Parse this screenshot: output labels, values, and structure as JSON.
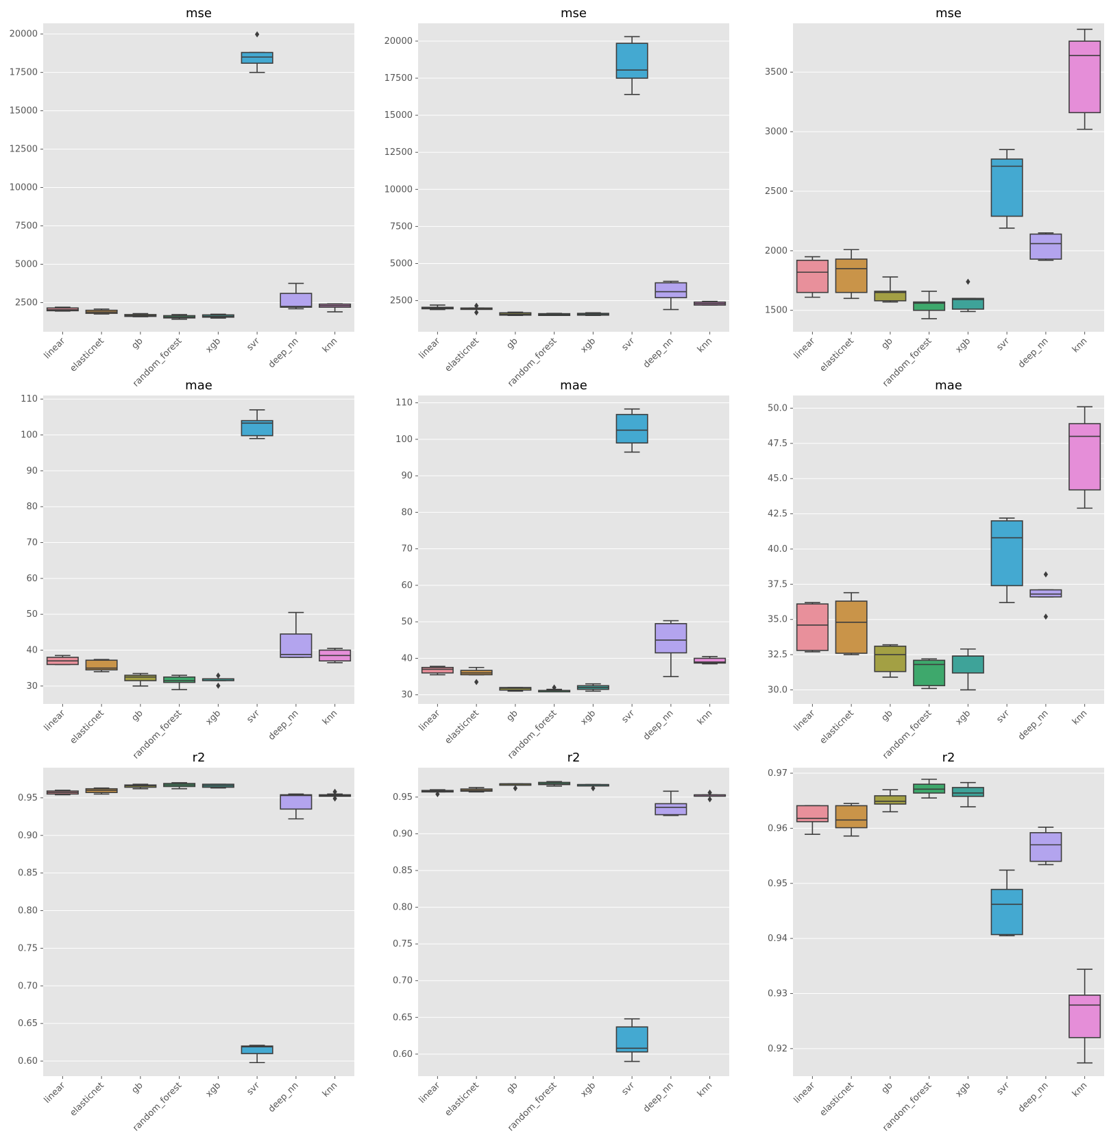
{
  "colors": {
    "panel_bg": "#e5e5e5",
    "grid": "#ffffff",
    "box_line": "#3d3d3d",
    "tick_text": "#555555",
    "title_text": "#000000",
    "models": {
      "linear": "#e8909b",
      "elasticnet": "#c99449",
      "gb": "#a3a044",
      "random_forest": "#3ea86c",
      "xgb": "#3ea399",
      "svr": "#44a9d1",
      "deep_nn": "#b3a4ee",
      "knn": "#e58ed8"
    }
  },
  "chart_data": [
    {
      "type": "box",
      "title": "mse",
      "categories": [
        "linear",
        "elasticnet",
        "gb",
        "random_forest",
        "xgb",
        "svr",
        "deep_nn",
        "knn"
      ],
      "yticks": [
        2500,
        5000,
        7500,
        10000,
        12500,
        15000,
        17500,
        20000
      ],
      "ytick_labels": [
        "2500",
        "5000",
        "7500",
        "10000",
        "12500",
        "15000",
        "17500",
        "20000"
      ],
      "ylim": [
        600,
        20700
      ],
      "boxes": [
        {
          "min": 1950,
          "q1": 1970,
          "med": 2030,
          "q3": 2150,
          "max": 2200,
          "outliers": []
        },
        {
          "min": 1760,
          "q1": 1800,
          "med": 1880,
          "q3": 2000,
          "max": 2080,
          "outliers": []
        },
        {
          "min": 1580,
          "q1": 1600,
          "med": 1650,
          "q3": 1720,
          "max": 1780,
          "outliers": []
        },
        {
          "min": 1420,
          "q1": 1500,
          "med": 1560,
          "q3": 1650,
          "max": 1720,
          "outliers": []
        },
        {
          "min": 1490,
          "q1": 1550,
          "med": 1600,
          "q3": 1700,
          "max": 1740,
          "outliers": []
        },
        {
          "min": 17500,
          "q1": 18100,
          "med": 18500,
          "q3": 18800,
          "max": 18800,
          "outliers": [
            19980
          ]
        },
        {
          "min": 2100,
          "q1": 2200,
          "med": 2250,
          "q3": 3100,
          "max": 3750,
          "outliers": []
        },
        {
          "min": 1900,
          "q1": 2200,
          "med": 2300,
          "q3": 2400,
          "max": 2420,
          "outliers": []
        }
      ]
    },
    {
      "type": "box",
      "title": "mse",
      "categories": [
        "linear",
        "elasticnet",
        "gb",
        "random_forest",
        "xgb",
        "svr",
        "deep_nn",
        "knn"
      ],
      "yticks": [
        2500,
        5000,
        7500,
        10000,
        12500,
        15000,
        17500,
        20000
      ],
      "ytick_labels": [
        "2500",
        "5000",
        "7500",
        "10000",
        "12500",
        "15000",
        "17500",
        "20000"
      ],
      "ylim": [
        400,
        21200
      ],
      "boxes": [
        {
          "min": 1900,
          "q1": 1950,
          "med": 2000,
          "q3": 2050,
          "max": 2200,
          "outliers": []
        },
        {
          "min": 1950,
          "q1": 1950,
          "med": 1980,
          "q3": 2000,
          "max": 2000,
          "outliers": [
            1700,
            2150
          ]
        },
        {
          "min": 1500,
          "q1": 1520,
          "med": 1580,
          "q3": 1680,
          "max": 1720,
          "outliers": []
        },
        {
          "min": 1500,
          "q1": 1500,
          "med": 1550,
          "q3": 1620,
          "max": 1640,
          "outliers": []
        },
        {
          "min": 1500,
          "q1": 1520,
          "med": 1560,
          "q3": 1640,
          "max": 1680,
          "outliers": []
        },
        {
          "min": 16400,
          "q1": 17500,
          "med": 18050,
          "q3": 19850,
          "max": 20300,
          "outliers": []
        },
        {
          "min": 1900,
          "q1": 2700,
          "med": 3100,
          "q3": 3700,
          "max": 3800,
          "outliers": []
        },
        {
          "min": 2200,
          "q1": 2200,
          "med": 2300,
          "q3": 2400,
          "max": 2450,
          "outliers": []
        }
      ]
    },
    {
      "type": "box",
      "title": "mse",
      "categories": [
        "linear",
        "elasticnet",
        "gb",
        "random_forest",
        "xgb",
        "svr",
        "deep_nn",
        "knn"
      ],
      "yticks": [
        1500,
        2000,
        2500,
        3000,
        3500
      ],
      "ytick_labels": [
        "1500",
        "2000",
        "2500",
        "3000",
        "3500"
      ],
      "ylim": [
        1320,
        3910
      ],
      "boxes": [
        {
          "min": 1610,
          "q1": 1650,
          "med": 1820,
          "q3": 1920,
          "max": 1950,
          "outliers": []
        },
        {
          "min": 1600,
          "q1": 1650,
          "med": 1850,
          "q3": 1930,
          "max": 2010,
          "outliers": []
        },
        {
          "min": 1570,
          "q1": 1580,
          "med": 1650,
          "q3": 1660,
          "max": 1780,
          "outliers": []
        },
        {
          "min": 1430,
          "q1": 1500,
          "med": 1560,
          "q3": 1570,
          "max": 1660,
          "outliers": []
        },
        {
          "min": 1490,
          "q1": 1510,
          "med": 1590,
          "q3": 1600,
          "max": 1600,
          "outliers": [
            1740
          ]
        },
        {
          "min": 2190,
          "q1": 2290,
          "med": 2710,
          "q3": 2770,
          "max": 2850,
          "outliers": []
        },
        {
          "min": 1920,
          "q1": 1930,
          "med": 2060,
          "q3": 2140,
          "max": 2150,
          "outliers": []
        },
        {
          "min": 3020,
          "q1": 3160,
          "med": 3640,
          "q3": 3760,
          "max": 3860,
          "outliers": []
        }
      ]
    },
    {
      "type": "box",
      "title": "mae",
      "categories": [
        "linear",
        "elasticnet",
        "gb",
        "random_forest",
        "xgb",
        "svr",
        "deep_nn",
        "knn"
      ],
      "yticks": [
        30,
        40,
        50,
        60,
        70,
        80,
        90,
        100,
        110
      ],
      "ytick_labels": [
        "30",
        "40",
        "50",
        "60",
        "70",
        "80",
        "90",
        "100",
        "110"
      ],
      "ylim": [
        25,
        111
      ],
      "boxes": [
        {
          "min": 36,
          "q1": 36,
          "med": 37,
          "q3": 38,
          "max": 38.5,
          "outliers": []
        },
        {
          "min": 34,
          "q1": 34.5,
          "med": 35,
          "q3": 37.2,
          "max": 37.4,
          "outliers": []
        },
        {
          "min": 30,
          "q1": 31.5,
          "med": 32.5,
          "q3": 33,
          "max": 33.5,
          "outliers": []
        },
        {
          "min": 29,
          "q1": 31,
          "med": 31.5,
          "q3": 32.5,
          "max": 33,
          "outliers": []
        },
        {
          "min": 31.5,
          "q1": 31.5,
          "med": 32,
          "q3": 32,
          "max": 32,
          "outliers": [
            30.1,
            32.9
          ]
        },
        {
          "min": 99,
          "q1": 99.8,
          "med": 103.3,
          "q3": 104,
          "max": 107,
          "outliers": []
        },
        {
          "min": 38,
          "q1": 38,
          "med": 38.8,
          "q3": 44.5,
          "max": 50.5,
          "outliers": []
        },
        {
          "min": 36.5,
          "q1": 37,
          "med": 38.5,
          "q3": 40,
          "max": 40.5,
          "outliers": []
        }
      ]
    },
    {
      "type": "box",
      "title": "mae",
      "categories": [
        "linear",
        "elasticnet",
        "gb",
        "random_forest",
        "xgb",
        "svr",
        "deep_nn",
        "knn"
      ],
      "yticks": [
        30,
        40,
        50,
        60,
        70,
        80,
        90,
        100,
        110
      ],
      "ytick_labels": [
        "30",
        "40",
        "50",
        "60",
        "70",
        "80",
        "90",
        "100",
        "110"
      ],
      "ylim": [
        27.5,
        112
      ],
      "boxes": [
        {
          "min": 35.5,
          "q1": 36,
          "med": 37,
          "q3": 37.5,
          "max": 37.8,
          "outliers": []
        },
        {
          "min": 35.5,
          "q1": 35.5,
          "med": 36,
          "q3": 36.7,
          "max": 37.5,
          "outliers": [
            33.5
          ]
        },
        {
          "min": 31,
          "q1": 31.3,
          "med": 31.8,
          "q3": 32,
          "max": 32,
          "outliers": []
        },
        {
          "min": 31,
          "q1": 31,
          "med": 31.2,
          "q3": 31.2,
          "max": 31.5,
          "outliers": [
            32
          ]
        },
        {
          "min": 31,
          "q1": 31.5,
          "med": 32,
          "q3": 32.5,
          "max": 33,
          "outliers": []
        },
        {
          "min": 96.5,
          "q1": 99,
          "med": 102.5,
          "q3": 106.8,
          "max": 108.3,
          "outliers": []
        },
        {
          "min": 35,
          "q1": 41.5,
          "med": 45,
          "q3": 49.5,
          "max": 50.3,
          "outliers": []
        },
        {
          "min": 38.5,
          "q1": 38.7,
          "med": 39,
          "q3": 40,
          "max": 40.5,
          "outliers": []
        }
      ]
    },
    {
      "type": "box",
      "title": "mae",
      "categories": [
        "linear",
        "elasticnet",
        "gb",
        "random_forest",
        "xgb",
        "svr",
        "deep_nn",
        "knn"
      ],
      "yticks": [
        30.0,
        32.5,
        35.0,
        37.5,
        40.0,
        42.5,
        45.0,
        47.5,
        50.0
      ],
      "ytick_labels": [
        "30.0",
        "32.5",
        "35.0",
        "37.5",
        "40.0",
        "42.5",
        "45.0",
        "47.5",
        "50.0"
      ],
      "ylim": [
        29,
        50.9
      ],
      "boxes": [
        {
          "min": 32.7,
          "q1": 32.8,
          "med": 34.6,
          "q3": 36.1,
          "max": 36.2,
          "outliers": []
        },
        {
          "min": 32.5,
          "q1": 32.6,
          "med": 34.8,
          "q3": 36.3,
          "max": 36.9,
          "outliers": []
        },
        {
          "min": 30.9,
          "q1": 31.3,
          "med": 32.5,
          "q3": 33.1,
          "max": 33.2,
          "outliers": []
        },
        {
          "min": 30.1,
          "q1": 30.3,
          "med": 31.8,
          "q3": 32.1,
          "max": 32.2,
          "outliers": []
        },
        {
          "min": 30.0,
          "q1": 31.2,
          "med": 32.4,
          "q3": 32.4,
          "max": 32.9,
          "outliers": []
        },
        {
          "min": 36.2,
          "q1": 37.4,
          "med": 40.8,
          "q3": 42.0,
          "max": 42.2,
          "outliers": []
        },
        {
          "min": 36.6,
          "q1": 36.6,
          "med": 36.8,
          "q3": 37.1,
          "max": 37.1,
          "outliers": [
            35.2,
            38.2
          ]
        },
        {
          "min": 42.9,
          "q1": 44.2,
          "med": 48.0,
          "q3": 48.9,
          "max": 50.1,
          "outliers": []
        }
      ]
    },
    {
      "type": "box",
      "title": "r2",
      "categories": [
        "linear",
        "elasticnet",
        "gb",
        "random_forest",
        "xgb",
        "svr",
        "deep_nn",
        "knn"
      ],
      "yticks": [
        0.6,
        0.65,
        0.7,
        0.75,
        0.8,
        0.85,
        0.9,
        0.95
      ],
      "ytick_labels": [
        "0.60",
        "0.65",
        "0.70",
        "0.75",
        "0.80",
        "0.85",
        "0.90",
        "0.95"
      ],
      "ylim": [
        0.58,
        0.99
      ],
      "boxes": [
        {
          "min": 0.954,
          "q1": 0.955,
          "med": 0.957,
          "q3": 0.959,
          "max": 0.96,
          "outliers": []
        },
        {
          "min": 0.955,
          "q1": 0.957,
          "med": 0.96,
          "q3": 0.962,
          "max": 0.963,
          "outliers": []
        },
        {
          "min": 0.962,
          "q1": 0.964,
          "med": 0.966,
          "q3": 0.967,
          "max": 0.968,
          "outliers": []
        },
        {
          "min": 0.962,
          "q1": 0.965,
          "med": 0.967,
          "q3": 0.969,
          "max": 0.97,
          "outliers": []
        },
        {
          "min": 0.963,
          "q1": 0.964,
          "med": 0.966,
          "q3": 0.968,
          "max": 0.968,
          "outliers": []
        },
        {
          "min": 0.598,
          "q1": 0.61,
          "med": 0.619,
          "q3": 0.62,
          "max": 0.621,
          "outliers": []
        },
        {
          "min": 0.922,
          "q1": 0.935,
          "med": 0.953,
          "q3": 0.954,
          "max": 0.955,
          "outliers": []
        },
        {
          "min": 0.952,
          "q1": 0.952,
          "med": 0.953,
          "q3": 0.954,
          "max": 0.955,
          "outliers": [
            0.949,
            0.958
          ]
        }
      ]
    },
    {
      "type": "box",
      "title": "r2",
      "categories": [
        "linear",
        "elasticnet",
        "gb",
        "random_forest",
        "xgb",
        "svr",
        "deep_nn",
        "knn"
      ],
      "yticks": [
        0.6,
        0.65,
        0.7,
        0.75,
        0.8,
        0.85,
        0.9,
        0.95
      ],
      "ytick_labels": [
        "0.60",
        "0.65",
        "0.70",
        "0.75",
        "0.80",
        "0.85",
        "0.90",
        "0.95"
      ],
      "ylim": [
        0.57,
        0.99
      ],
      "boxes": [
        {
          "min": 0.957,
          "q1": 0.957,
          "med": 0.958,
          "q3": 0.959,
          "max": 0.96,
          "outliers": [
            0.954
          ]
        },
        {
          "min": 0.957,
          "q1": 0.958,
          "med": 0.959,
          "q3": 0.961,
          "max": 0.963,
          "outliers": []
        },
        {
          "min": 0.967,
          "q1": 0.967,
          "med": 0.968,
          "q3": 0.968,
          "max": 0.968,
          "outliers": [
            0.962
          ]
        },
        {
          "min": 0.965,
          "q1": 0.967,
          "med": 0.968,
          "q3": 0.97,
          "max": 0.971,
          "outliers": []
        },
        {
          "min": 0.967,
          "q1": 0.967,
          "med": 0.967,
          "q3": 0.967,
          "max": 0.967,
          "outliers": [
            0.962
          ]
        },
        {
          "min": 0.59,
          "q1": 0.603,
          "med": 0.608,
          "q3": 0.637,
          "max": 0.648,
          "outliers": []
        },
        {
          "min": 0.925,
          "q1": 0.926,
          "med": 0.936,
          "q3": 0.941,
          "max": 0.958,
          "outliers": []
        },
        {
          "min": 0.952,
          "q1": 0.952,
          "med": 0.953,
          "q3": 0.953,
          "max": 0.953,
          "outliers": [
            0.947,
            0.956
          ]
        }
      ]
    },
    {
      "type": "box",
      "title": "r2",
      "categories": [
        "linear",
        "elasticnet",
        "gb",
        "random_forest",
        "xgb",
        "svr",
        "deep_nn",
        "knn"
      ],
      "yticks": [
        0.92,
        0.93,
        0.94,
        0.95,
        0.96,
        0.97
      ],
      "ytick_labels": [
        "0.92",
        "0.93",
        "0.94",
        "0.95",
        "0.96",
        "0.97"
      ],
      "ylim": [
        0.915,
        0.971
      ],
      "boxes": [
        {
          "min": 0.9589,
          "q1": 0.9612,
          "med": 0.9618,
          "q3": 0.9641,
          "max": 0.9641,
          "outliers": []
        },
        {
          "min": 0.9586,
          "q1": 0.9601,
          "med": 0.9615,
          "q3": 0.9641,
          "max": 0.9645,
          "outliers": []
        },
        {
          "min": 0.963,
          "q1": 0.9644,
          "med": 0.9649,
          "q3": 0.9659,
          "max": 0.967,
          "outliers": []
        },
        {
          "min": 0.9655,
          "q1": 0.9664,
          "med": 0.9671,
          "q3": 0.968,
          "max": 0.9689,
          "outliers": []
        },
        {
          "min": 0.9639,
          "q1": 0.9658,
          "med": 0.9664,
          "q3": 0.9674,
          "max": 0.9683,
          "outliers": []
        },
        {
          "min": 0.9405,
          "q1": 0.9407,
          "med": 0.9462,
          "q3": 0.9489,
          "max": 0.9524,
          "outliers": []
        },
        {
          "min": 0.9534,
          "q1": 0.954,
          "med": 0.957,
          "q3": 0.9592,
          "max": 0.9602,
          "outliers": []
        },
        {
          "min": 0.9174,
          "q1": 0.922,
          "med": 0.9279,
          "q3": 0.9297,
          "max": 0.9344,
          "outliers": []
        }
      ]
    }
  ]
}
